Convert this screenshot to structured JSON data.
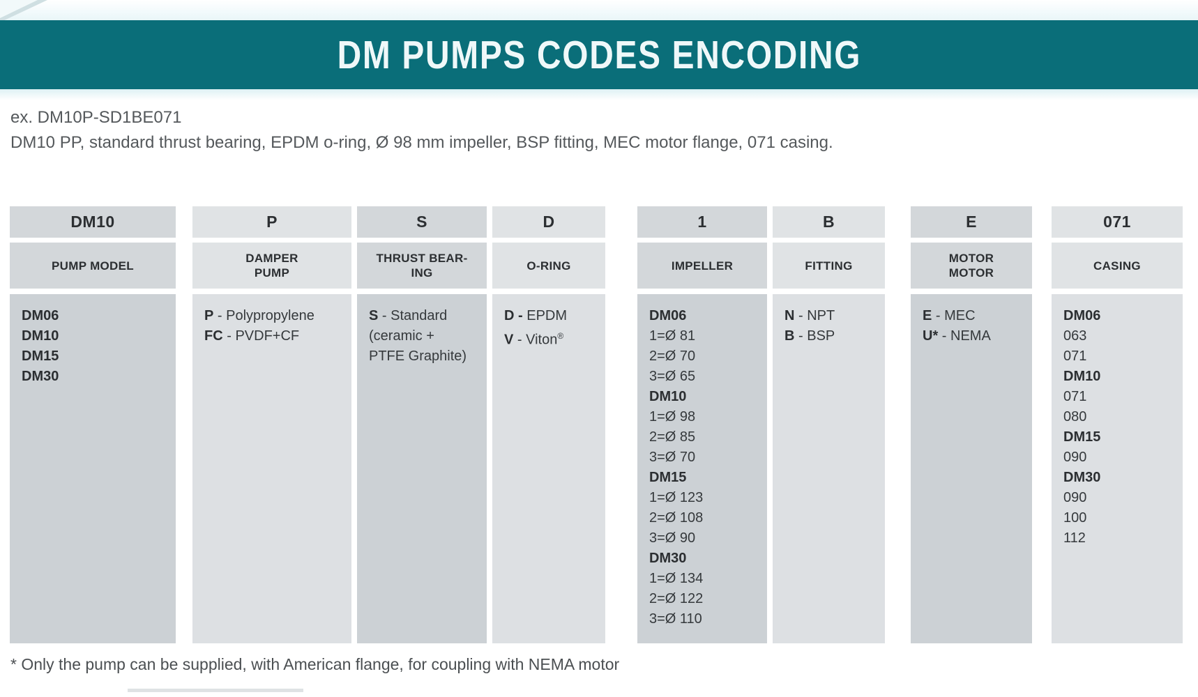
{
  "title": "DM PUMPS CODES ENCODING",
  "example": {
    "code_line": "ex. DM10P-SD1BE071",
    "description_line": "DM10 PP, standard thrust bearing, EPDM o-ring, Ø 98 mm impeller, BSP fitting, MEC motor flange, 071 casing."
  },
  "footnote": "* Only the pump can be supplied, with American flange, for coupling with NEMA motor",
  "colors": {
    "banner_teal": "#0a6e79",
    "cell_dark_header": "#d3d7da",
    "cell_dark_body": "#ccd1d5",
    "cell_light_header": "#e0e3e5",
    "cell_light_body": "#dde0e3"
  },
  "table": {
    "columns": [
      {
        "code": "DM10",
        "label_lines": [
          "PUMP MODEL"
        ],
        "lines": [
          {
            "b": "DM06"
          },
          {
            "b": "DM10"
          },
          {
            "b": "DM15"
          },
          {
            "b": "DM30"
          }
        ]
      },
      {
        "code": "P",
        "label_lines": [
          "DAMPER",
          "PUMP"
        ],
        "lines": [
          {
            "b": "P",
            "t": " - Polypropylene"
          },
          {
            "b": "FC",
            "t": " - PVDF+CF"
          }
        ]
      },
      {
        "code": "S",
        "label_lines": [
          "THRUST BEAR-",
          "ING"
        ],
        "lines": [
          {
            "b": "S",
            "t": " - Standard"
          },
          {
            "t": "(ceramic +"
          },
          {
            "t": "PTFE Graphite)"
          }
        ]
      },
      {
        "code": "D",
        "label_lines": [
          "O-RING"
        ],
        "lines": [
          {
            "b": "D -",
            "t": " EPDM"
          },
          {
            "b": "V",
            "t": " - Viton",
            "sup": "®"
          }
        ]
      },
      {
        "code": "1",
        "label_lines": [
          "IMPELLER"
        ],
        "lines": [
          {
            "b": "DM06"
          },
          {
            "t": "1=Ø 81"
          },
          {
            "t": "2=Ø 70"
          },
          {
            "t": "3=Ø 65"
          },
          {
            "b": "DM10"
          },
          {
            "t": "1=Ø 98"
          },
          {
            "t": "2=Ø 85"
          },
          {
            "t": "3=Ø 70"
          },
          {
            "b": "DM15"
          },
          {
            "t": "1=Ø 123"
          },
          {
            "t": "2=Ø 108"
          },
          {
            "t": "3=Ø 90"
          },
          {
            "b": "DM30"
          },
          {
            "t": "1=Ø 134"
          },
          {
            "t": "2=Ø 122"
          },
          {
            "t": "3=Ø 110"
          }
        ]
      },
      {
        "code": "B",
        "label_lines": [
          "FITTING"
        ],
        "lines": [
          {
            "b": "N",
            "t": " - NPT"
          },
          {
            "b": "B",
            "t": " - BSP"
          }
        ]
      },
      {
        "code": "E",
        "label_lines": [
          "MOTOR",
          "MOTOR"
        ],
        "lines": [
          {
            "b": "E",
            "t": " - MEC"
          },
          {
            "b": "U*",
            "t": " - NEMA"
          }
        ]
      },
      {
        "code": "071",
        "label_lines": [
          "CASING"
        ],
        "lines": [
          {
            "b": "DM06"
          },
          {
            "t": "063"
          },
          {
            "t": "071"
          },
          {
            "b": "DM10"
          },
          {
            "t": "071"
          },
          {
            "t": "080"
          },
          {
            "b": "DM15"
          },
          {
            "t": "090"
          },
          {
            "b": "DM30"
          },
          {
            "t": "090"
          },
          {
            "t": "100"
          },
          {
            "t": "112"
          }
        ]
      }
    ]
  }
}
